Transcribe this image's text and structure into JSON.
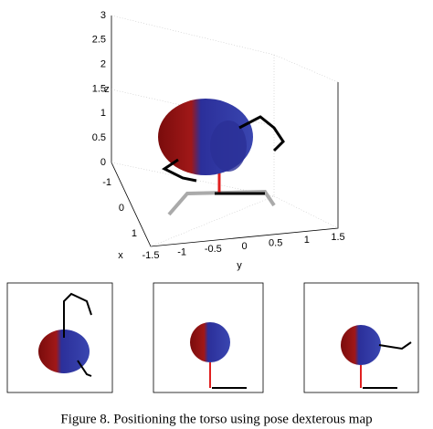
{
  "main_plot": {
    "z_label": "z",
    "x_label": "x",
    "y_label": "y",
    "zticks": [
      "0",
      "0.5",
      "1",
      "1.5",
      "2",
      "2.5",
      "3"
    ],
    "xticks": [
      "-1",
      "0",
      "1"
    ],
    "yticks": [
      "-1.5",
      "-1",
      "-0.5",
      "0",
      "0.5",
      "1",
      "1.5"
    ]
  },
  "caption": "Figure 8.    Positioning the torso using pose dexterous map"
}
